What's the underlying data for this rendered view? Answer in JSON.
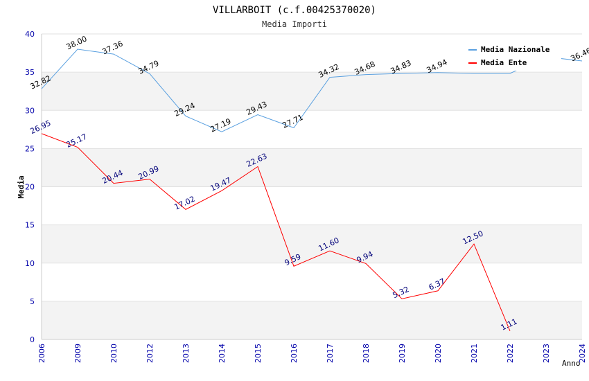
{
  "chart_data": {
    "type": "line",
    "title": "VILLARBOIT (c.f.00425370020)",
    "subtitle": "Media Importi",
    "xlabel": "Anno",
    "ylabel": "Media",
    "ylim": [
      0,
      40
    ],
    "yticks": [
      0,
      5,
      10,
      15,
      20,
      25,
      30,
      35,
      40
    ],
    "grid": true,
    "legend_position": "top-right",
    "categories": [
      "2006",
      "2009",
      "2010",
      "2012",
      "2013",
      "2014",
      "2015",
      "2016",
      "2017",
      "2018",
      "2019",
      "2020",
      "2021",
      "2022",
      "2023",
      "2024"
    ],
    "series": [
      {
        "name": "Media Nazionale",
        "color": "#5aa0e0",
        "values": [
          32.82,
          38.0,
          37.36,
          34.79,
          29.24,
          27.19,
          29.43,
          27.71,
          34.32,
          34.68,
          34.83,
          34.94,
          34.83,
          34.83,
          37.0,
          36.46
        ],
        "labels": [
          "32.82",
          "38.00",
          "37.36",
          "34.79",
          "29.24",
          "27.19",
          "29.43",
          "27.71",
          "34.32",
          "34.68",
          "34.83",
          "34.94",
          "",
          "",
          "",
          "36.46"
        ]
      },
      {
        "name": "Media Ente",
        "color": "#ff0000",
        "values": [
          26.95,
          25.17,
          20.44,
          20.99,
          17.02,
          19.47,
          22.63,
          9.59,
          11.6,
          9.94,
          5.32,
          6.37,
          12.5,
          1.11,
          null,
          null
        ],
        "labels": [
          "26.95",
          "25.17",
          "20.44",
          "20.99",
          "17.02",
          "19.47",
          "22.63",
          "9.59",
          "11.60",
          "9.94",
          "5.32",
          "6.37",
          "12.50",
          "1.11",
          "",
          ""
        ]
      }
    ]
  }
}
